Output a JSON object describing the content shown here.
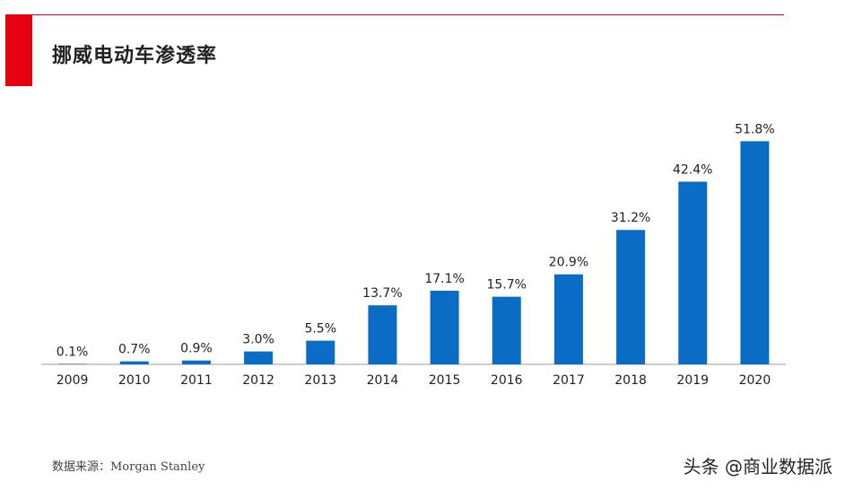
{
  "header": {
    "title": "挪威电动车渗透率",
    "accent_color": "#e60012"
  },
  "chart_data": {
    "type": "bar",
    "title": "挪威电动车渗透率",
    "xlabel": "",
    "ylabel": "",
    "categories": [
      "2009",
      "2010",
      "2011",
      "2012",
      "2013",
      "2014",
      "2015",
      "2016",
      "2017",
      "2018",
      "2019",
      "2020"
    ],
    "values": [
      0.1,
      0.7,
      0.9,
      3.0,
      5.5,
      13.7,
      17.1,
      15.7,
      20.9,
      31.2,
      42.4,
      51.8
    ],
    "value_labels": [
      "0.1%",
      "0.7%",
      "0.9%",
      "3.0%",
      "5.5%",
      "13.7%",
      "17.1%",
      "15.7%",
      "20.9%",
      "31.2%",
      "42.4%",
      "51.8%"
    ],
    "unit": "%",
    "ylim": [
      0,
      60
    ],
    "grid": false,
    "bar_color": "#0a6cc4"
  },
  "footer": {
    "source": "数据来源：Morgan Stanley",
    "watermark": "头条 @商业数据派"
  }
}
